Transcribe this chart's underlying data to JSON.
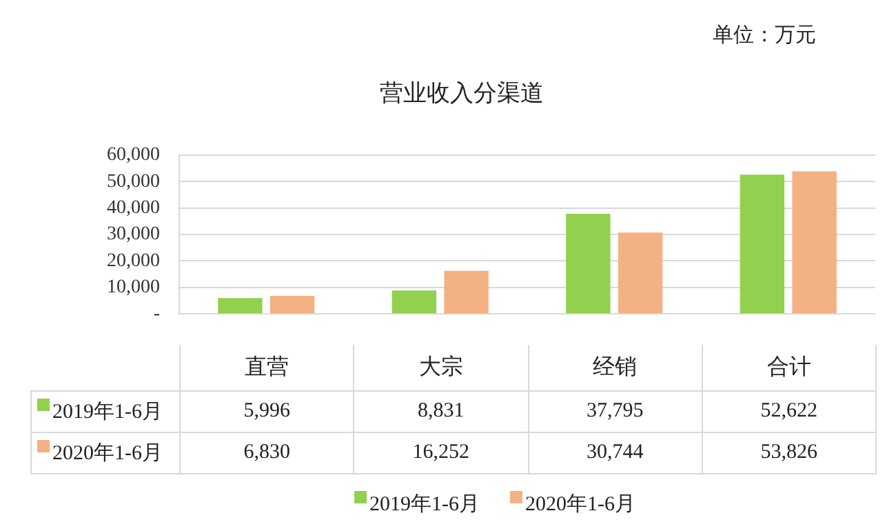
{
  "chart_data": {
    "type": "bar",
    "title": "营业收入分渠道",
    "annotations": [
      "单位：万元"
    ],
    "categories": [
      "直营",
      "大宗",
      "经销",
      "合计"
    ],
    "series": [
      {
        "name": "2019年1-6月",
        "color": "#92d050",
        "values": [
          5996,
          8831,
          37795,
          52622
        ],
        "value_labels": [
          "5,996",
          "8,831",
          "37,795",
          "52,622"
        ]
      },
      {
        "name": "2020年1-6月",
        "color": "#f4b183",
        "values": [
          6830,
          16252,
          30744,
          53826
        ],
        "value_labels": [
          "6,830",
          "16,252",
          "30,744",
          "53,826"
        ]
      }
    ],
    "ylim": [
      0,
      60000
    ],
    "yticks": [
      {
        "value": 0,
        "label": "-"
      },
      {
        "value": 10000,
        "label": "10,000"
      },
      {
        "value": 20000,
        "label": "20,000"
      },
      {
        "value": 30000,
        "label": "30,000"
      },
      {
        "value": 40000,
        "label": "40,000"
      },
      {
        "value": 50000,
        "label": "50,000"
      },
      {
        "value": 60000,
        "label": "60,000"
      }
    ],
    "grid": "y",
    "legend": "bottom"
  }
}
